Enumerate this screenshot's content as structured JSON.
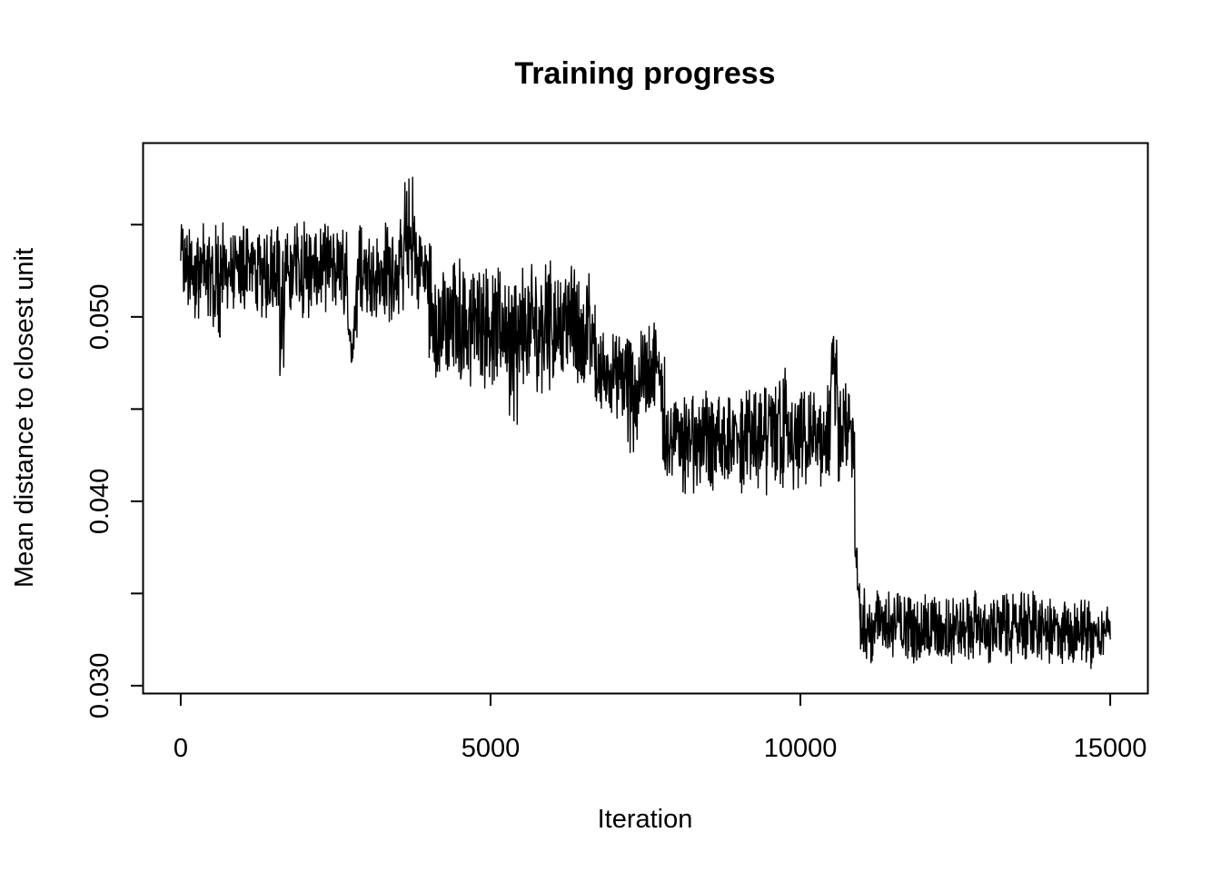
{
  "chart_data": {
    "type": "line",
    "title": "Training progress",
    "xlabel": "Iteration",
    "ylabel": "Mean distance to closest unit",
    "xlim": [
      -600,
      15600
    ],
    "ylim": [
      0.0296,
      0.0594
    ],
    "x_ticks": [
      0,
      5000,
      10000,
      15000
    ],
    "x_tick_labels": [
      "0",
      "5000",
      "10000",
      "15000"
    ],
    "y_ticks": [
      0.03,
      0.035,
      0.04,
      0.045,
      0.05,
      0.055
    ],
    "y_tick_labels": [
      "0.030",
      "",
      "0.040",
      "",
      "0.050",
      ""
    ],
    "grid": false,
    "legend": "none",
    "series": [
      {
        "values_description_points": [
          [
            0,
            0.056
          ],
          [
            40,
            0.0505
          ],
          [
            120,
            0.0549
          ],
          [
            200,
            0.0498
          ],
          [
            300,
            0.0551
          ],
          [
            400,
            0.05
          ],
          [
            520,
            0.0548
          ],
          [
            560,
            0.048
          ],
          [
            640,
            0.0552
          ],
          [
            760,
            0.0503
          ],
          [
            900,
            0.0546
          ],
          [
            1000,
            0.0499
          ],
          [
            1060,
            0.056
          ],
          [
            1100,
            0.0505
          ],
          [
            1220,
            0.0549
          ],
          [
            1350,
            0.0498
          ],
          [
            1500,
            0.0552
          ],
          [
            1600,
            0.0503
          ],
          [
            1620,
            0.046
          ],
          [
            1680,
            0.0547
          ],
          [
            1800,
            0.05
          ],
          [
            1950,
            0.0553
          ],
          [
            2100,
            0.0498
          ],
          [
            2250,
            0.0551
          ],
          [
            2400,
            0.0502
          ],
          [
            2550,
            0.0549
          ],
          [
            2700,
            0.0497
          ],
          [
            2800,
            0.0475
          ],
          [
            2850,
            0.0553
          ],
          [
            3000,
            0.05
          ],
          [
            3150,
            0.0548
          ],
          [
            3300,
            0.0496
          ],
          [
            3450,
            0.0555
          ],
          [
            3600,
            0.0499
          ],
          [
            3700,
            0.0578
          ],
          [
            3780,
            0.0503
          ],
          [
            3900,
            0.055
          ],
          [
            3980,
            0.0498
          ],
          [
            4010,
            0.0545
          ],
          [
            4050,
            0.047
          ],
          [
            4100,
            0.0528
          ],
          [
            4200,
            0.0465
          ],
          [
            4300,
            0.0527
          ],
          [
            4400,
            0.0468
          ],
          [
            4500,
            0.0535
          ],
          [
            4600,
            0.0462
          ],
          [
            4700,
            0.0528
          ],
          [
            4800,
            0.0466
          ],
          [
            4900,
            0.053
          ],
          [
            5000,
            0.046
          ],
          [
            5100,
            0.0528
          ],
          [
            5200,
            0.0462
          ],
          [
            5300,
            0.053
          ],
          [
            5400,
            0.044
          ],
          [
            5500,
            0.0527
          ],
          [
            5600,
            0.0462
          ],
          [
            5700,
            0.0529
          ],
          [
            5800,
            0.0458
          ],
          [
            5900,
            0.0532
          ],
          [
            6000,
            0.046
          ],
          [
            6100,
            0.0527
          ],
          [
            6200,
            0.0463
          ],
          [
            6300,
            0.0531
          ],
          [
            6400,
            0.0461
          ],
          [
            6500,
            0.0528
          ],
          [
            6600,
            0.0464
          ],
          [
            6680,
            0.051
          ],
          [
            6720,
            0.0445
          ],
          [
            6800,
            0.0492
          ],
          [
            6900,
            0.0447
          ],
          [
            7000,
            0.0494
          ],
          [
            7100,
            0.044
          ],
          [
            7200,
            0.0495
          ],
          [
            7300,
            0.0425
          ],
          [
            7400,
            0.0493
          ],
          [
            7500,
            0.0446
          ],
          [
            7600,
            0.0499
          ],
          [
            7700,
            0.0448
          ],
          [
            7780,
            0.0486
          ],
          [
            7820,
            0.0408
          ],
          [
            7900,
            0.0455
          ],
          [
            8000,
            0.041
          ],
          [
            8100,
            0.046
          ],
          [
            8200,
            0.0404
          ],
          [
            8300,
            0.0458
          ],
          [
            8400,
            0.0408
          ],
          [
            8500,
            0.046
          ],
          [
            8600,
            0.0405
          ],
          [
            8700,
            0.0462
          ],
          [
            8800,
            0.041
          ],
          [
            8900,
            0.0458
          ],
          [
            9000,
            0.0404
          ],
          [
            9100,
            0.0462
          ],
          [
            9200,
            0.0407
          ],
          [
            9300,
            0.046
          ],
          [
            9400,
            0.0403
          ],
          [
            9500,
            0.0464
          ],
          [
            9600,
            0.0405
          ],
          [
            9700,
            0.0481
          ],
          [
            9800,
            0.04
          ],
          [
            9900,
            0.046
          ],
          [
            10000,
            0.0405
          ],
          [
            10100,
            0.0462
          ],
          [
            10200,
            0.0402
          ],
          [
            10300,
            0.0462
          ],
          [
            10400,
            0.0405
          ],
          [
            10500,
            0.0468
          ],
          [
            10560,
            0.0492
          ],
          [
            10620,
            0.041
          ],
          [
            10700,
            0.0466
          ],
          [
            10800,
            0.0405
          ],
          [
            10850,
            0.0465
          ],
          [
            10880,
            0.038
          ],
          [
            10920,
            0.036
          ],
          [
            10960,
            0.0345
          ],
          [
            11000,
            0.0318
          ],
          [
            11050,
            0.0355
          ],
          [
            11150,
            0.0312
          ],
          [
            11300,
            0.0352
          ],
          [
            11450,
            0.0315
          ],
          [
            11600,
            0.0351
          ],
          [
            11750,
            0.0312
          ],
          [
            11900,
            0.035
          ],
          [
            12050,
            0.0313
          ],
          [
            12200,
            0.035
          ],
          [
            12350,
            0.031
          ],
          [
            12500,
            0.0349
          ],
          [
            12650,
            0.0313
          ],
          [
            12800,
            0.0352
          ],
          [
            12950,
            0.0311
          ],
          [
            13100,
            0.0348
          ],
          [
            13250,
            0.0314
          ],
          [
            13400,
            0.035
          ],
          [
            13550,
            0.0311
          ],
          [
            13700,
            0.0353
          ],
          [
            13850,
            0.0313
          ],
          [
            14000,
            0.0348
          ],
          [
            14150,
            0.031
          ],
          [
            14300,
            0.0347
          ],
          [
            14450,
            0.0312
          ],
          [
            14600,
            0.0349
          ],
          [
            14750,
            0.0309
          ],
          [
            14900,
            0.0345
          ],
          [
            15000,
            0.0325
          ]
        ]
      }
    ]
  }
}
